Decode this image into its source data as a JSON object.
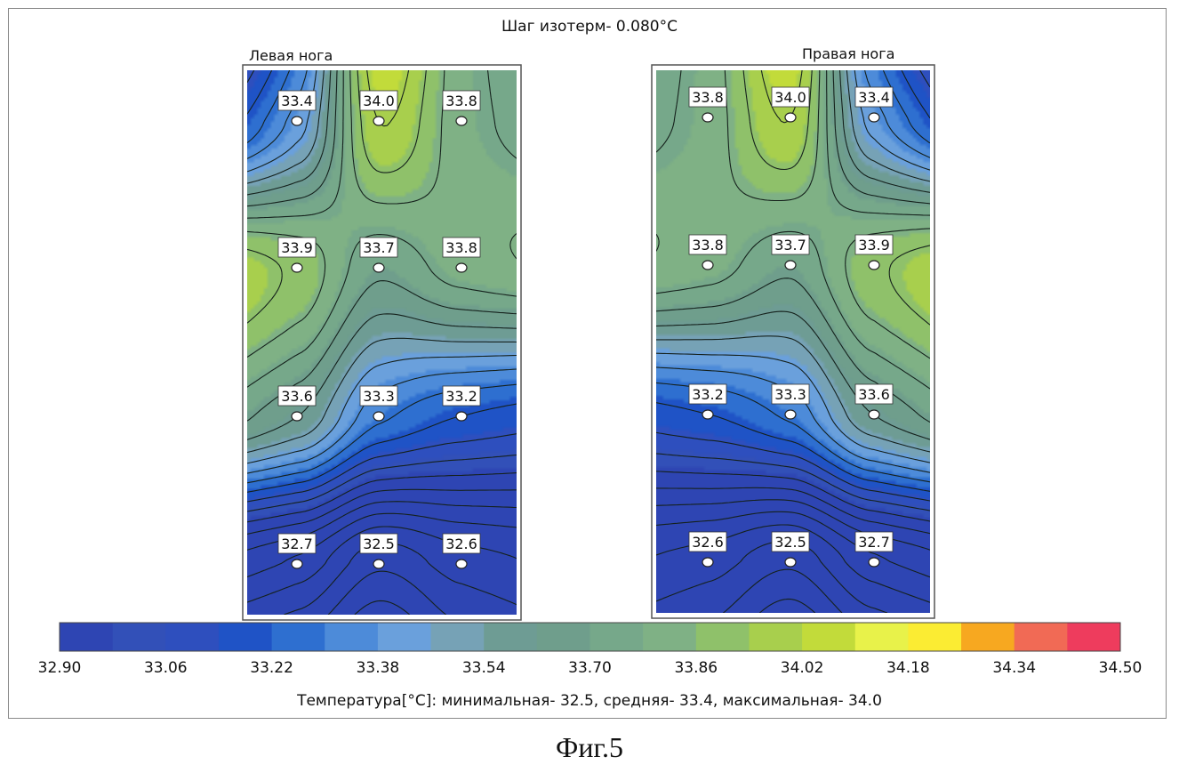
{
  "figure": {
    "isotherm_step": "Шаг изотерм- 0.080°C",
    "stats": "Температура[°C]: минимальная-   32.5,  средняя-   33.4,  максимальная-   34.0",
    "caption": "Фиг.5"
  },
  "chart_data": {
    "type": "heatmap",
    "title": "Шаг изотерм- 0.080°C",
    "isotherm_step": 0.08,
    "panels": [
      {
        "name": "Левая нога",
        "columns": 3,
        "rows": 4,
        "values": [
          [
            33.4,
            34.0,
            33.8
          ],
          [
            33.9,
            33.7,
            33.8
          ],
          [
            33.6,
            33.3,
            33.2
          ],
          [
            32.7,
            32.5,
            32.6
          ]
        ],
        "labels": [
          [
            "33.4",
            "34.0",
            "33.8"
          ],
          [
            "33.9",
            "33.7",
            "33.8"
          ],
          [
            "33.6",
            "33.3",
            "33.2"
          ],
          [
            "32.7",
            "32.5",
            "32.6"
          ]
        ]
      },
      {
        "name": "Правая нога",
        "columns": 3,
        "rows": 4,
        "values": [
          [
            33.8,
            34.0,
            33.4
          ],
          [
            33.8,
            33.7,
            33.9
          ],
          [
            33.2,
            33.3,
            33.6
          ],
          [
            32.6,
            32.5,
            32.7
          ]
        ],
        "labels": [
          [
            "33.8",
            "34.0",
            "33.4"
          ],
          [
            "33.8",
            "33.7",
            "33.9"
          ],
          [
            "33.2",
            "33.3",
            "33.6"
          ],
          [
            "32.6",
            "32.5",
            "32.7"
          ]
        ]
      }
    ],
    "colorbar": {
      "min": 32.9,
      "max": 34.5,
      "tick_values": [
        32.9,
        33.06,
        33.22,
        33.38,
        33.54,
        33.7,
        33.86,
        34.02,
        34.18,
        34.34,
        34.5
      ],
      "tick_labels": [
        "32.90",
        "33.06",
        "33.22",
        "33.38",
        "33.54",
        "33.70",
        "33.86",
        "34.02",
        "34.18",
        "34.34",
        "34.50"
      ],
      "colors": [
        "#2e45b3",
        "#3250b8",
        "#2e4fbe",
        "#1f53c6",
        "#2e6fd0",
        "#4d8bd9",
        "#6aa0dc",
        "#76a2b6",
        "#6e9c94",
        "#6f9e8c",
        "#76a88a",
        "#7fb185",
        "#8fc16a",
        "#a8cf4d",
        "#c2db3a",
        "#e8f24a",
        "#fbec33",
        "#f7a820",
        "#f16a55",
        "#ee3c5d"
      ]
    },
    "statistics": {
      "minimum": 32.5,
      "mean": 33.4,
      "maximum": 34.0,
      "unit": "°C"
    }
  }
}
